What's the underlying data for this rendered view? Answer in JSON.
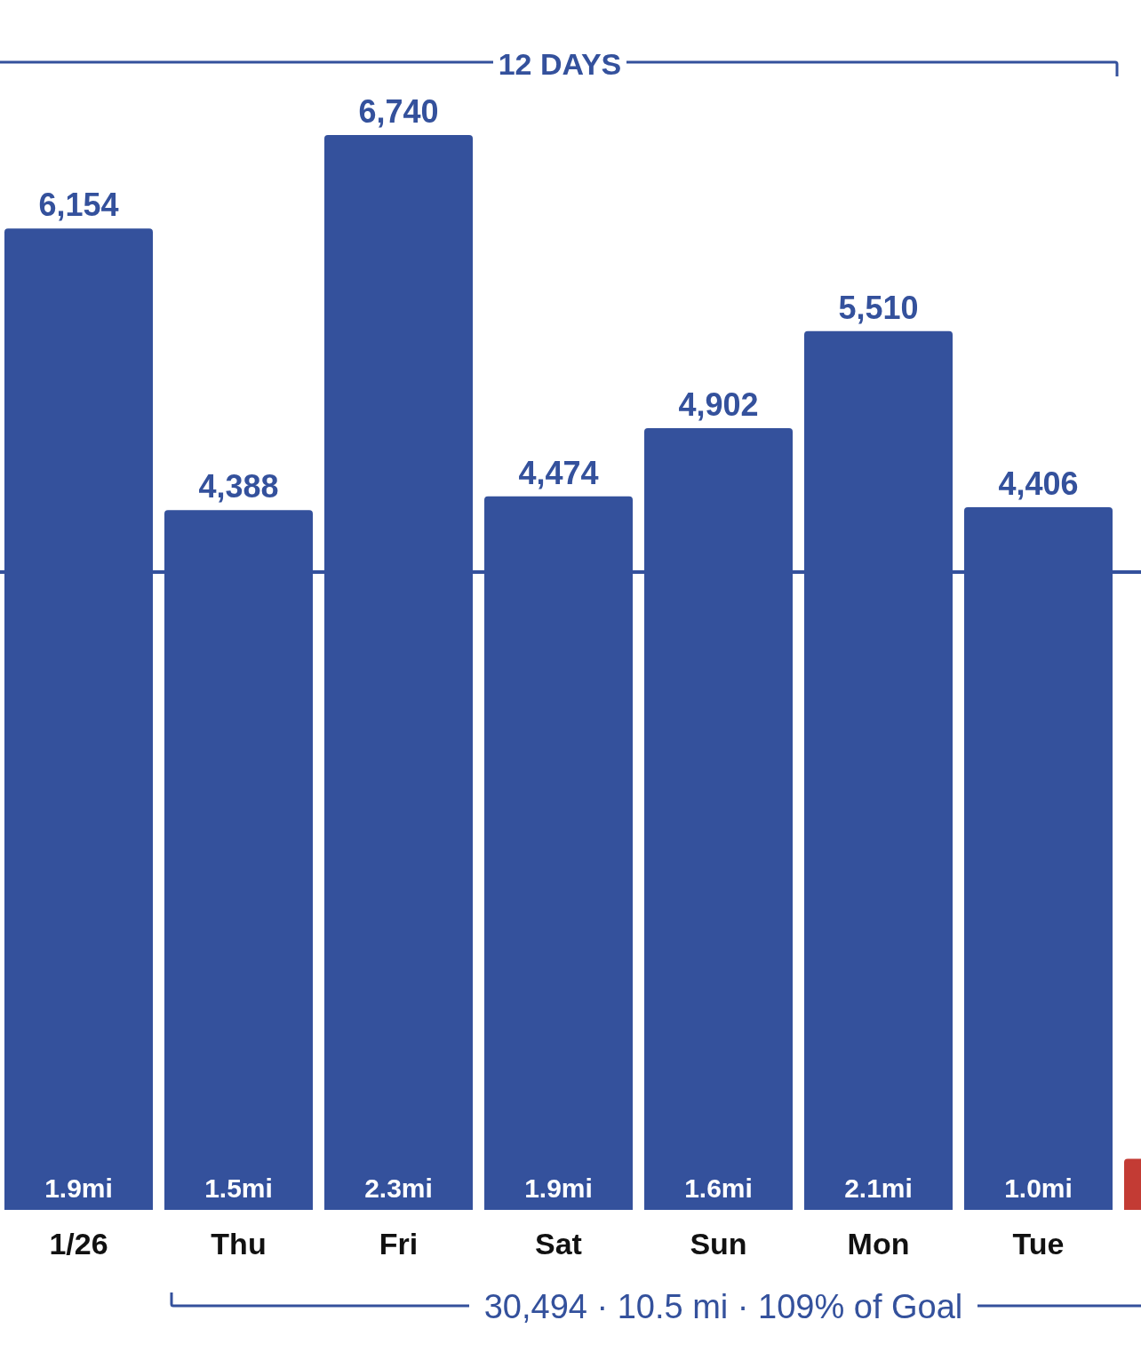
{
  "chart_data": {
    "type": "bar",
    "categories": [
      "1/26",
      "Thu",
      "Fri",
      "Sat",
      "Sun",
      "Mon",
      "Tue",
      null
    ],
    "values": [
      6154,
      4388,
      6740,
      4474,
      4902,
      5510,
      4406,
      320
    ],
    "colors": [
      "#34519c",
      "#34519c",
      "#34519c",
      "#34519c",
      "#34519c",
      "#34519c",
      "#34519c",
      "#c33b34"
    ],
    "value_labels": [
      "6,154",
      "4,388",
      "6,740",
      "4,474",
      "4,902",
      "5,510",
      "4,406",
      null
    ],
    "ref_lines": [
      {
        "axis": "y",
        "value": 4000,
        "color": "#34519c"
      }
    ],
    "annotations": [
      "12 DAYS",
      "30,494 · 10.5 mi · 109% of Goal",
      "1.9mi",
      "1.5mi",
      "2.3mi",
      "1.9mi",
      "1.6mi",
      "2.1mi",
      "1.0mi"
    ]
  }
}
